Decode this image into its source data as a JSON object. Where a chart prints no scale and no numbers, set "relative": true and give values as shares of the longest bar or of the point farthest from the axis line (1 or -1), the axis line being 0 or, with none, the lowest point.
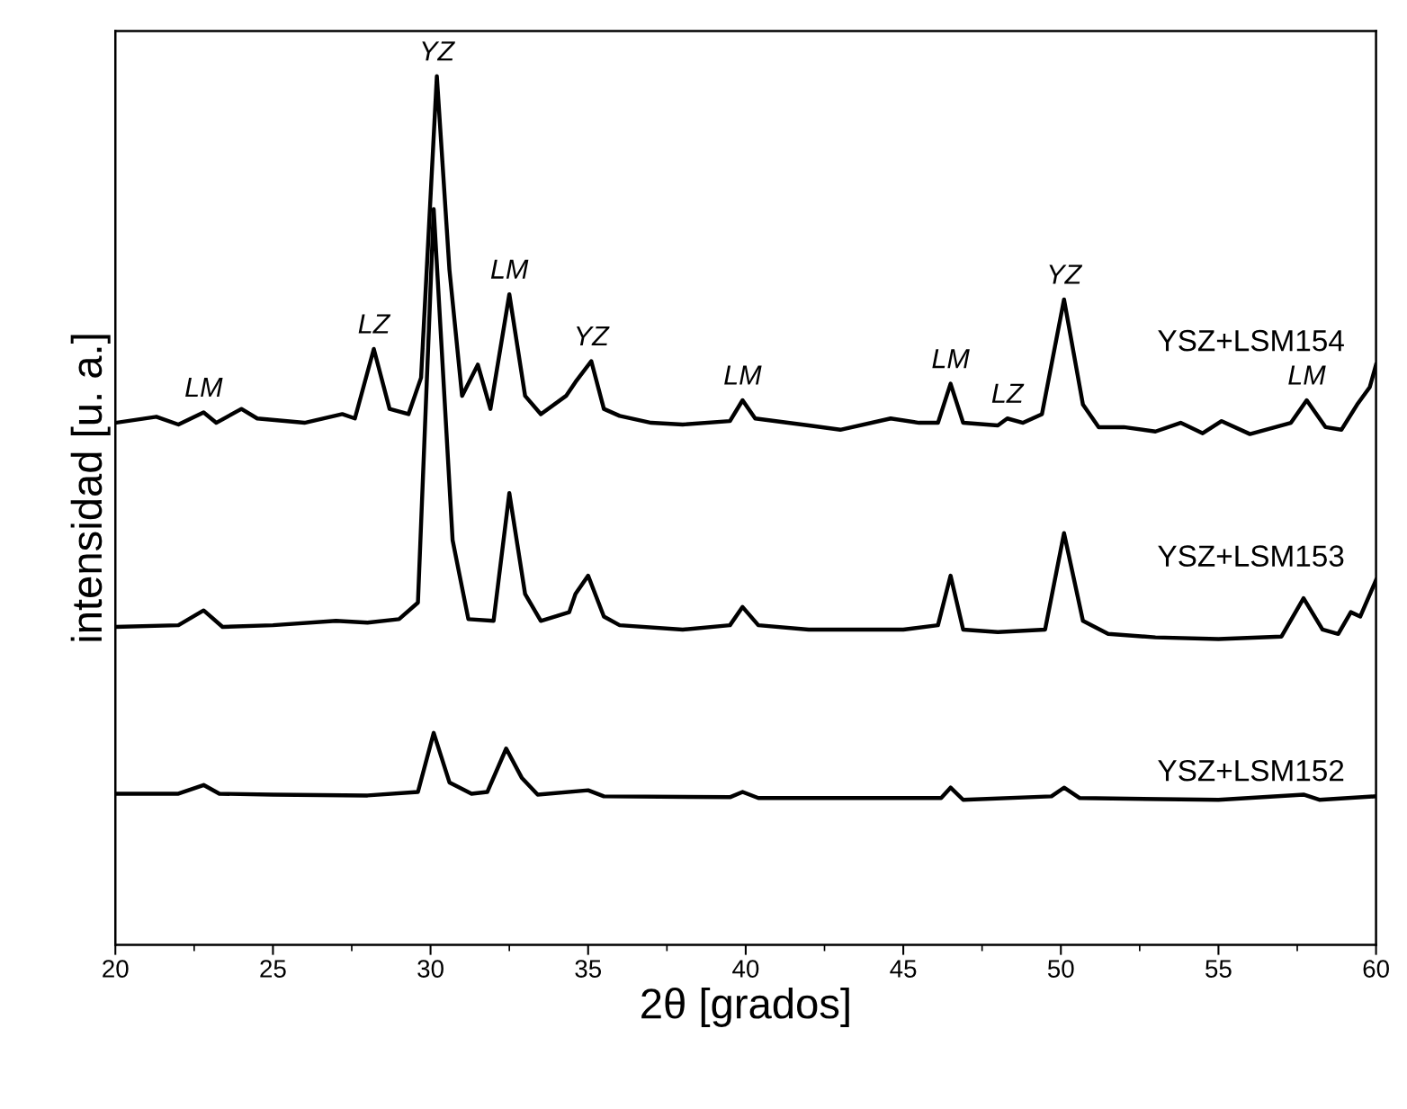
{
  "chart_data": {
    "type": "line",
    "relative": true,
    "xlabel": "2θ [grados]",
    "ylabel": "intensidad [u. a.]",
    "xlim": [
      20,
      60
    ],
    "xticks": [
      20,
      {
        "value": 22.5,
        "label": null
      },
      25,
      {
        "value": 27.5,
        "label": null
      },
      30,
      {
        "value": 32.5,
        "label": null
      },
      35,
      {
        "value": 37.5,
        "label": null
      },
      40,
      {
        "value": 42.5,
        "label": null
      },
      45,
      {
        "value": 47.5,
        "label": null
      },
      50,
      {
        "value": 52.5,
        "label": null
      },
      55,
      {
        "value": 57.5,
        "label": null
      },
      60
    ],
    "grid": false,
    "marker": "none",
    "line_style": "solid",
    "series": [
      {
        "name": "YSZ+LSM154",
        "color": "#000000",
        "x": [
          20,
          21.3,
          22,
          22.8,
          23.2,
          24,
          24.5,
          26,
          27.2,
          27.6,
          28.2,
          28.7,
          29.3,
          29.7,
          30.2,
          30.6,
          31.0,
          31.5,
          31.9,
          32.5,
          33.0,
          33.5,
          34.3,
          34.6,
          35.1,
          35.5,
          36,
          37,
          38,
          39.5,
          39.9,
          40.3,
          42,
          43,
          44.6,
          45.5,
          46.1,
          46.5,
          46.9,
          48,
          48.3,
          48.8,
          49.4,
          50.1,
          50.7,
          51.2,
          52,
          53,
          53.8,
          54.5,
          55.1,
          56,
          57.3,
          57.8,
          58.4,
          58.9,
          59.4,
          59.8,
          60
        ],
        "values": [
          0.601,
          0.608,
          0.599,
          0.613,
          0.601,
          0.617,
          0.606,
          0.601,
          0.611,
          0.606,
          0.686,
          0.617,
          0.611,
          0.653,
          1.0,
          0.777,
          0.632,
          0.668,
          0.617,
          0.749,
          0.632,
          0.611,
          0.632,
          0.648,
          0.672,
          0.617,
          0.609,
          0.601,
          0.599,
          0.603,
          0.627,
          0.606,
          0.598,
          0.593,
          0.606,
          0.601,
          0.601,
          0.646,
          0.601,
          0.598,
          0.606,
          0.601,
          0.611,
          0.743,
          0.622,
          0.596,
          0.596,
          0.591,
          0.601,
          0.589,
          0.603,
          0.588,
          0.601,
          0.627,
          0.596,
          0.593,
          0.622,
          0.642,
          0.668
        ]
      },
      {
        "name": "YSZ+LSM153",
        "color": "#000000",
        "x": [
          20,
          22,
          22.8,
          23.4,
          25,
          27,
          28,
          29,
          29.6,
          30.1,
          30.7,
          31.2,
          32,
          32.5,
          33,
          33.5,
          34.4,
          34.6,
          35,
          35.5,
          36,
          38,
          39.5,
          39.9,
          40.4,
          42,
          45,
          46.1,
          46.5,
          46.9,
          48,
          49.5,
          50.1,
          50.7,
          51.5,
          53,
          55,
          57,
          57.7,
          58.3,
          58.8,
          59.2,
          59.5,
          60
        ],
        "values": [
          0.366,
          0.368,
          0.385,
          0.366,
          0.368,
          0.373,
          0.371,
          0.375,
          0.394,
          0.847,
          0.466,
          0.375,
          0.373,
          0.52,
          0.404,
          0.373,
          0.383,
          0.404,
          0.425,
          0.378,
          0.368,
          0.363,
          0.368,
          0.389,
          0.368,
          0.363,
          0.363,
          0.368,
          0.425,
          0.363,
          0.36,
          0.363,
          0.474,
          0.373,
          0.358,
          0.354,
          0.352,
          0.355,
          0.399,
          0.363,
          0.358,
          0.383,
          0.378,
          0.42
        ]
      },
      {
        "name": "YSZ+LSM152",
        "color": "#000000",
        "x": [
          20,
          22,
          22.8,
          23.3,
          25,
          28,
          29.6,
          30.1,
          30.6,
          31.3,
          31.8,
          32.4,
          32.9,
          33.4,
          35,
          35.5,
          39.5,
          39.9,
          40.4,
          46.2,
          46.5,
          46.9,
          49.7,
          50.1,
          50.6,
          55,
          57.7,
          58.2,
          60
        ],
        "values": [
          0.174,
          0.174,
          0.184,
          0.174,
          0.173,
          0.172,
          0.176,
          0.244,
          0.187,
          0.174,
          0.176,
          0.226,
          0.192,
          0.173,
          0.178,
          0.171,
          0.17,
          0.176,
          0.169,
          0.169,
          0.181,
          0.167,
          0.171,
          0.181,
          0.169,
          0.167,
          0.173,
          0.167,
          0.171
        ]
      }
    ],
    "annotations": [
      {
        "text": "LM",
        "x": 22.8,
        "y": 0.613
      },
      {
        "text": "LZ",
        "x": 28.2,
        "y": 0.686
      },
      {
        "text": "YZ",
        "x": 30.2,
        "y": 1.0
      },
      {
        "text": "LM",
        "x": 32.5,
        "y": 0.749
      },
      {
        "text": "YZ",
        "x": 35.1,
        "y": 0.672
      },
      {
        "text": "LM",
        "x": 39.9,
        "y": 0.627
      },
      {
        "text": "LM",
        "x": 46.5,
        "y": 0.646
      },
      {
        "text": "LZ",
        "x": 48.3,
        "y": 0.606
      },
      {
        "text": "YZ",
        "x": 50.1,
        "y": 0.743
      },
      {
        "text": "LM",
        "x": 57.8,
        "y": 0.627
      }
    ]
  }
}
